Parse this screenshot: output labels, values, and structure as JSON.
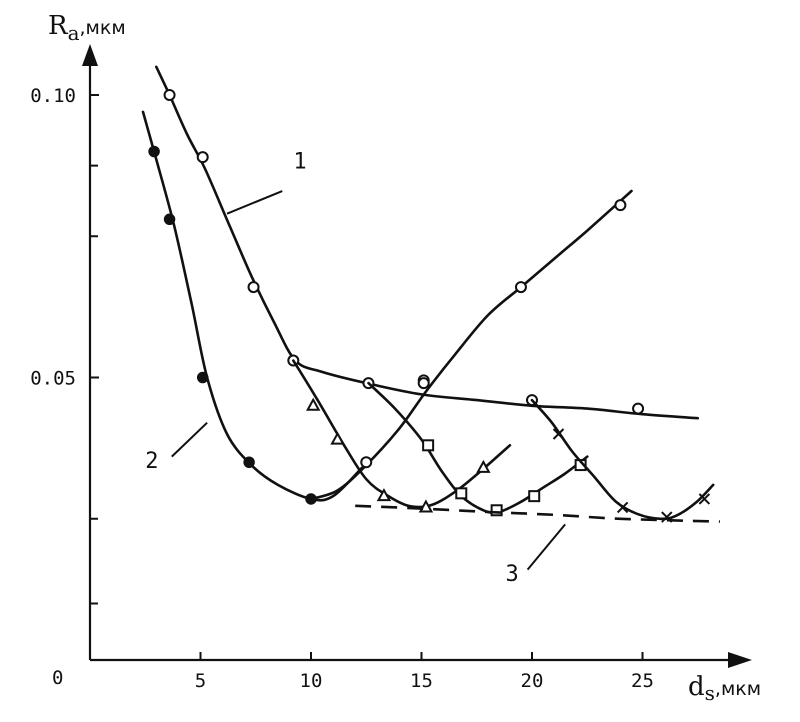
{
  "chart_data": {
    "type": "line",
    "xlabel": "d",
    "xlabel_sub": "s",
    "xlabel_unit": ",мкм",
    "ylabel": "R",
    "ylabel_sub": "a",
    "ylabel_unit": ",мкм",
    "xlim": [
      0,
      29
    ],
    "ylim": [
      0,
      0.1
    ],
    "origin_label": "0",
    "x_ticks": [
      {
        "value": 5,
        "label": "5"
      },
      {
        "value": 10,
        "label": "10"
      },
      {
        "value": 15,
        "label": "15"
      },
      {
        "value": 20,
        "label": "20"
      },
      {
        "value": 25,
        "label": "25"
      }
    ],
    "y_ticks": [
      {
        "value": 0.1,
        "label": "0.10"
      },
      {
        "value": 0.05,
        "label": "0.05"
      }
    ],
    "y_minor_ticks": [
      0.025,
      0.075,
      0.0875,
      0.01
    ],
    "series": [
      {
        "name": "1",
        "marker": "circle-open",
        "curve": [
          [
            3.0,
            0.105
          ],
          [
            3.6,
            0.1
          ],
          [
            4.4,
            0.093
          ],
          [
            5.2,
            0.087
          ],
          [
            6.3,
            0.077
          ],
          [
            7.3,
            0.068
          ],
          [
            8.3,
            0.06
          ],
          [
            9.3,
            0.053
          ],
          [
            10.5,
            0.051
          ],
          [
            12.5,
            0.049
          ],
          [
            15,
            0.047
          ],
          [
            17.5,
            0.046
          ],
          [
            20,
            0.045
          ],
          [
            22.5,
            0.0445
          ],
          [
            25,
            0.0435
          ],
          [
            27.5,
            0.0428
          ]
        ],
        "points": [
          [
            3.6,
            0.1
          ],
          [
            5.1,
            0.089
          ],
          [
            7.4,
            0.066
          ],
          [
            9.2,
            0.053
          ],
          [
            12.6,
            0.049
          ],
          [
            15.1,
            0.0495
          ],
          [
            20,
            0.046
          ],
          [
            24.8,
            0.0445
          ]
        ]
      },
      {
        "name": "2",
        "marker": "circle-filled",
        "curve": [
          [
            2.4,
            0.097
          ],
          [
            2.9,
            0.09
          ],
          [
            3.8,
            0.077
          ],
          [
            4.6,
            0.063
          ],
          [
            5.3,
            0.05
          ],
          [
            6.2,
            0.04
          ],
          [
            7.3,
            0.0345
          ],
          [
            8.5,
            0.031
          ],
          [
            10,
            0.0285
          ],
          [
            11,
            0.029
          ],
          [
            12.3,
            0.034
          ]
        ],
        "points": [
          [
            2.9,
            0.09
          ],
          [
            3.6,
            0.078
          ],
          [
            5.1,
            0.05
          ],
          [
            7.2,
            0.035
          ],
          [
            10,
            0.0285
          ]
        ]
      },
      {
        "name": "",
        "marker": "circle-open",
        "curve": [
          [
            10,
            0.0285
          ],
          [
            11.2,
            0.03
          ],
          [
            12.5,
            0.0345
          ],
          [
            14,
            0.041
          ],
          [
            15.2,
            0.0475
          ],
          [
            16.5,
            0.054
          ],
          [
            18,
            0.061
          ],
          [
            19.5,
            0.066
          ],
          [
            21,
            0.071
          ],
          [
            22.5,
            0.076
          ],
          [
            24.5,
            0.083
          ]
        ],
        "points": [
          [
            12.5,
            0.035
          ],
          [
            15.1,
            0.049
          ],
          [
            19.5,
            0.066
          ],
          [
            24,
            0.0805
          ]
        ]
      },
      {
        "name": "",
        "marker": "triangle",
        "curve": [
          [
            9.2,
            0.053
          ],
          [
            10.3,
            0.046
          ],
          [
            11.5,
            0.038
          ],
          [
            12.5,
            0.032
          ],
          [
            13.5,
            0.029
          ],
          [
            14.5,
            0.0272
          ],
          [
            15.5,
            0.0275
          ],
          [
            16.6,
            0.03
          ],
          [
            17.7,
            0.0335
          ],
          [
            19,
            0.038
          ]
        ],
        "points": [
          [
            10.1,
            0.045
          ],
          [
            11.2,
            0.039
          ],
          [
            13.3,
            0.029
          ],
          [
            15.2,
            0.027
          ],
          [
            17.8,
            0.034
          ]
        ]
      },
      {
        "name": "",
        "marker": "square",
        "curve": [
          [
            12.6,
            0.049
          ],
          [
            13.8,
            0.0445
          ],
          [
            15,
            0.039
          ],
          [
            15.9,
            0.0335
          ],
          [
            16.8,
            0.029
          ],
          [
            17.8,
            0.0265
          ],
          [
            18.5,
            0.0262
          ],
          [
            19.5,
            0.028
          ],
          [
            20.5,
            0.0305
          ],
          [
            21.5,
            0.033
          ],
          [
            22.5,
            0.036
          ]
        ],
        "points": [
          [
            15.3,
            0.038
          ],
          [
            16.8,
            0.0295
          ],
          [
            18.4,
            0.0265
          ],
          [
            20.1,
            0.029
          ],
          [
            22.2,
            0.0345
          ]
        ]
      },
      {
        "name": "",
        "marker": "cross",
        "curve": [
          [
            20,
            0.046
          ],
          [
            20.9,
            0.042
          ],
          [
            21.8,
            0.037
          ],
          [
            22.8,
            0.0325
          ],
          [
            23.8,
            0.028
          ],
          [
            24.8,
            0.0258
          ],
          [
            25.8,
            0.025
          ],
          [
            26.5,
            0.0255
          ],
          [
            27.4,
            0.0278
          ],
          [
            28.2,
            0.031
          ]
        ],
        "points": [
          [
            21.2,
            0.04
          ],
          [
            24.1,
            0.027
          ],
          [
            26.1,
            0.0253
          ],
          [
            27.8,
            0.0285
          ]
        ]
      },
      {
        "name": "3",
        "marker": "none",
        "dashed": true,
        "curve": [
          [
            12,
            0.0273
          ],
          [
            15,
            0.0268
          ],
          [
            18,
            0.0262
          ],
          [
            21,
            0.0257
          ],
          [
            24,
            0.025
          ],
          [
            28.5,
            0.0245
          ]
        ],
        "points": []
      }
    ],
    "curve_labels": [
      {
        "text": "1",
        "x": 9.2,
        "y": 0.087,
        "leader_from": [
          8.7,
          0.083
        ],
        "leader_to": [
          6.2,
          0.079
        ]
      },
      {
        "text": "2",
        "x": 2.5,
        "y": 0.034,
        "leader_from": [
          3.7,
          0.036
        ],
        "leader_to": [
          5.3,
          0.042
        ]
      },
      {
        "text": "3",
        "x": 18.8,
        "y": 0.014,
        "leader_from": [
          19.8,
          0.016
        ],
        "leader_to": [
          21.5,
          0.024
        ]
      }
    ]
  }
}
